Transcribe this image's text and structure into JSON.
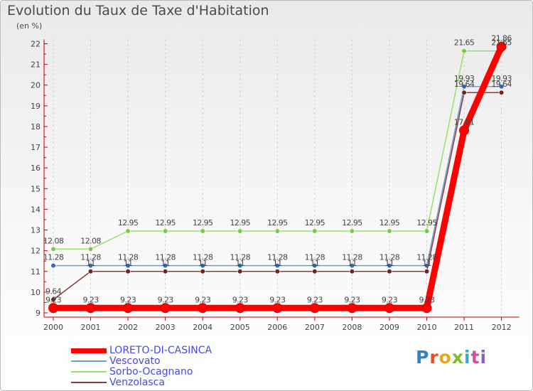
{
  "chart_data": {
    "type": "line",
    "title": "Evolution du Taux de Taxe d'Habitation",
    "subtitle": "(en %)",
    "xlabel": "",
    "ylabel": "(en %)",
    "categories": [
      "2000",
      "2001",
      "2002",
      "2003",
      "2004",
      "2005",
      "2006",
      "2007",
      "2008",
      "2009",
      "2010",
      "2011",
      "2012"
    ],
    "ylim": [
      9,
      22
    ],
    "yticks": [
      9,
      10,
      11,
      12,
      13,
      14,
      15,
      16,
      17,
      18,
      19,
      20,
      21,
      22
    ],
    "grid": "vertical dashed lines",
    "legend_position": "bottom-left",
    "series": [
      {
        "name": "LORETO-DI-CASINCA",
        "color": "#ff0000",
        "values": [
          9.23,
          9.23,
          9.23,
          9.23,
          9.23,
          9.23,
          9.23,
          9.23,
          9.23,
          9.23,
          9.23,
          17.81,
          21.86
        ],
        "labels": [
          "9.23",
          "9.23",
          "9.23",
          "9.23",
          "9.23",
          "9.23",
          "9.23",
          "9.23",
          "9.23",
          "9.23",
          "9.23",
          "17.81",
          "21.86"
        ]
      },
      {
        "name": "Vescovato",
        "color": "#6f9fc9",
        "marker_color": "#2a6fb0",
        "values": [
          11.28,
          11.28,
          11.28,
          11.28,
          11.28,
          11.28,
          11.28,
          11.28,
          11.28,
          11.28,
          11.28,
          19.93,
          19.93
        ],
        "labels": [
          "11.28",
          "11.28",
          "11.28",
          "11.28",
          "11.28",
          "11.28",
          "11.28",
          "11.28",
          "11.28",
          "11.28",
          "11.28",
          "19.93",
          "19.93"
        ]
      },
      {
        "name": "Sorbo-Ocagnano",
        "color": "#99e06a",
        "marker_color": "#77cc44",
        "values": [
          12.08,
          12.08,
          12.95,
          12.95,
          12.95,
          12.95,
          12.95,
          12.95,
          12.95,
          12.95,
          12.95,
          21.65,
          21.65
        ],
        "labels": [
          "12.08",
          "12.08",
          "12.95",
          "12.95",
          "12.95",
          "12.95",
          "12.95",
          "12.95",
          "12.95",
          "12.95",
          "12.95",
          "21.65",
          "21.65"
        ]
      },
      {
        "name": "Venzolasca",
        "color": "#8a3c3c",
        "marker_color": "#6e2424",
        "values": [
          9.64,
          11,
          11,
          11,
          11,
          11,
          11,
          11,
          11,
          11,
          11,
          19.64,
          19.64
        ],
        "labels": [
          "9.64",
          "11",
          "11",
          "11",
          "11",
          "11",
          "11",
          "11",
          "11",
          "11",
          "11",
          "19.64",
          "19.64"
        ]
      }
    ]
  },
  "logo": {
    "text": "Proxiti",
    "letters": [
      "P",
      "r",
      "o",
      "x",
      "i",
      "t",
      "i"
    ]
  }
}
